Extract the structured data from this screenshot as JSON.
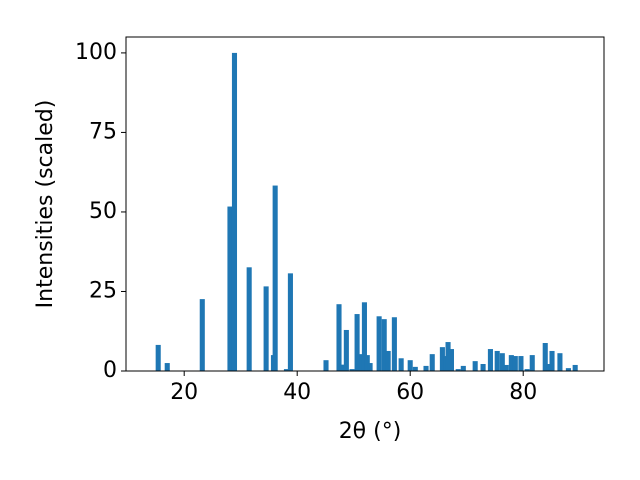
{
  "chart_data": {
    "type": "bar",
    "x_label": "2θ (°)",
    "y_label": "Intensities (scaled)",
    "color": "#1f77b4",
    "x": [
      15.4,
      17.0,
      23.2,
      28.1,
      28.9,
      31.5,
      34.5,
      35.8,
      36.1,
      38.1,
      38.8,
      45.1,
      47.4,
      48.0,
      48.7,
      49.7,
      50.6,
      51.3,
      51.9,
      52.4,
      52.9,
      54.5,
      55.4,
      56.1,
      57.2,
      58.4,
      60.0,
      60.9,
      62.8,
      63.9,
      65.7,
      66.4,
      66.7,
      67.3,
      68.5,
      69.4,
      71.5,
      72.9,
      74.2,
      75.4,
      76.3,
      77.0,
      77.9,
      78.6,
      79.6,
      80.7,
      81.6,
      83.9,
      84.6,
      85.1,
      86.5,
      88.0,
      89.2
    ],
    "values": [
      8.2,
      2.5,
      22.6,
      51.7,
      100,
      32.6,
      26.6,
      5,
      58.3,
      0.6,
      30.7,
      3.4,
      21,
      2,
      12.9,
      0.6,
      17.9,
      5.3,
      21.6,
      5,
      2.5,
      17.2,
      16.3,
      6.3,
      16.9,
      4,
      3.4,
      1.3,
      1.6,
      5.3,
      7.5,
      4.7,
      9.1,
      6.9,
      0.6,
      1.6,
      3.1,
      2.2,
      6.9,
      6.3,
      5.6,
      1.9,
      5,
      4.7,
      4.7,
      0.6,
      5,
      8.8,
      2.2,
      6.3,
      5.6,
      0.9,
      1.9
    ],
    "xlim": [
      9.7,
      94.3
    ],
    "ylim": [
      0,
      105
    ],
    "xticks": [
      20,
      40,
      60,
      80
    ],
    "yticks": [
      0,
      25,
      50,
      75,
      100
    ]
  }
}
